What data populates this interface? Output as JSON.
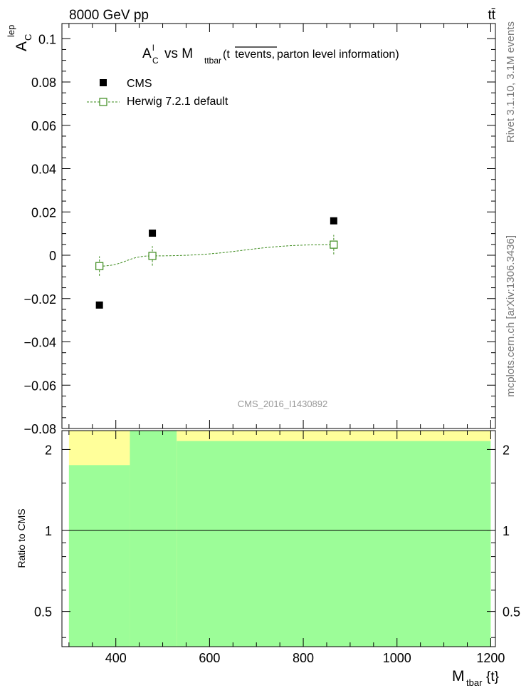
{
  "header": {
    "left_label": "8000 GeV pp",
    "right_label": "tt̄"
  },
  "side_labels": {
    "rivet": "Rivet 3.1.10,  3.1M events",
    "mcplots": "mcplots.cern.ch [arXiv:1306.3436]"
  },
  "colors": {
    "data_marker": "#000000",
    "mc_line": "#3a8a1a",
    "band_inner": "#9cfd98",
    "band_outer": "#ffff9a"
  },
  "chart_data": [
    {
      "type": "scatter",
      "title": "A_C^l vs M_ttbar (tt̄ events, parton level information)",
      "title_parts": {
        "a": "A",
        "a_sup": "l",
        "a_sub": "C",
        "vs": "vs M",
        "m_sub": "ttbar",
        "rest_open": "(t",
        "rest_over": "tevents,",
        "rest_close": " parton level information)"
      },
      "ylabel": "A_C^lep",
      "ylabel_parts": {
        "main": "A",
        "sup": "lep",
        "sub": "C"
      },
      "watermark": "CMS_2016_I1430892",
      "xlim": [
        285,
        1210
      ],
      "ylim": [
        -0.08,
        0.107
      ],
      "yticks": [
        0.1,
        0.08,
        0.06,
        0.04,
        0.02,
        0,
        -0.02,
        -0.04,
        -0.06,
        -0.08
      ],
      "ytick_labels": [
        "0.1",
        "0.08",
        "0.06",
        "0.04",
        "0.02",
        "0",
        "−0.02",
        "−0.04",
        "−0.06",
        "−0.08"
      ],
      "legend_position": "top-left",
      "series": [
        {
          "name": "CMS",
          "marker": "filled-square",
          "x": [
            365,
            478,
            865
          ],
          "y": [
            -0.023,
            0.0102,
            0.0159
          ]
        },
        {
          "name": "Herwig 7.2.1 default",
          "marker": "open-square",
          "line": "dashed",
          "x": [
            365,
            478,
            865
          ],
          "y": [
            -0.005,
            -0.0003,
            0.0049
          ],
          "yerr": [
            0.0045,
            0.0045,
            0.0045
          ]
        }
      ]
    },
    {
      "type": "area",
      "ylabel": "Ratio to CMS",
      "xlabel": "M_tbar{t}",
      "xlabel_parts": {
        "main": "M",
        "sub": "tbar",
        "rest": "{t}"
      },
      "xlim": [
        285,
        1210
      ],
      "ylim": [
        0.37,
        2.35
      ],
      "log_y": true,
      "xticks": [
        400,
        600,
        800,
        1000,
        1200
      ],
      "xtick_labels": [
        "400",
        "600",
        "800",
        "1000",
        "1200"
      ],
      "yticks": [
        0.5,
        1,
        2
      ],
      "ytick_labels": [
        "0.5",
        "1",
        "2"
      ],
      "reference_line": 1,
      "bins": [
        {
          "xlow": 300,
          "xhigh": 430,
          "inner_low": 0.37,
          "inner_high": 1.75,
          "outer_low": 0.37,
          "outer_high": 2.35
        },
        {
          "xlow": 430,
          "xhigh": 530,
          "inner_low": 0.37,
          "inner_high": 2.35,
          "outer_low": 0.37,
          "outer_high": 2.35
        },
        {
          "xlow": 530,
          "xhigh": 1200,
          "inner_low": 0.37,
          "inner_high": 2.15,
          "outer_low": 0.37,
          "outer_high": 2.35
        }
      ]
    }
  ]
}
